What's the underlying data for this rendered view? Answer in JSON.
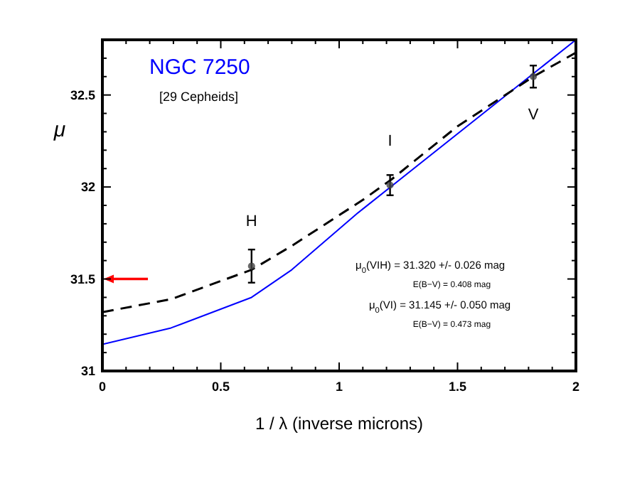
{
  "chart_data": {
    "type": "line",
    "title": "NGC 7250",
    "subtitle": "[29 Cepheids]",
    "xlabel": "1 / λ (inverse microns)",
    "ylabel": "μ",
    "xlim": [
      0,
      2
    ],
    "ylim": [
      31,
      32.8
    ],
    "xticks": [
      0,
      {
        "value": 0.1,
        "label": null
      },
      {
        "value": 0.2,
        "label": null
      },
      {
        "value": 0.3,
        "label": null
      },
      {
        "value": 0.4,
        "label": null
      },
      0.5,
      {
        "value": 0.6,
        "label": null
      },
      {
        "value": 0.7,
        "label": null
      },
      {
        "value": 0.8,
        "label": null
      },
      {
        "value": 0.9,
        "label": null
      },
      1,
      {
        "value": 1.1,
        "label": null
      },
      {
        "value": 1.2,
        "label": null
      },
      {
        "value": 1.3,
        "label": null
      },
      {
        "value": 1.4,
        "label": null
      },
      1.5,
      {
        "value": 1.6,
        "label": null
      },
      {
        "value": 1.7,
        "label": null
      },
      {
        "value": 1.8,
        "label": null
      },
      {
        "value": 1.9,
        "label": null
      },
      2
    ],
    "yticks": [
      31,
      {
        "value": 31.1,
        "label": null
      },
      {
        "value": 31.2,
        "label": null
      },
      {
        "value": 31.3,
        "label": null
      },
      {
        "value": 31.4,
        "label": null
      },
      31.5,
      {
        "value": 31.6,
        "label": null
      },
      {
        "value": 31.7,
        "label": null
      },
      {
        "value": 31.8,
        "label": null
      },
      {
        "value": 31.9,
        "label": null
      },
      32,
      {
        "value": 32.1,
        "label": null
      },
      {
        "value": 32.2,
        "label": null
      },
      {
        "value": 32.3,
        "label": null
      },
      {
        "value": 32.4,
        "label": null
      },
      32.5,
      {
        "value": 32.6,
        "label": null
      },
      {
        "value": 32.7,
        "label": null
      }
    ],
    "grid": false,
    "series": [
      {
        "color": "#0000ff",
        "line_style": "solid",
        "marker": "none",
        "x": [
          0,
          0.29,
          0.63,
          0.8,
          1.08,
          2
        ],
        "values": [
          31.145,
          31.234,
          31.4,
          31.55,
          31.86,
          32.8
        ]
      },
      {
        "color": "#000000",
        "line_style": "dashed",
        "marker": "none",
        "x": [
          0,
          0.29,
          0.63,
          0.8,
          1.1,
          1.22,
          1.5,
          1.82,
          2
        ],
        "values": [
          31.32,
          31.39,
          31.55,
          31.68,
          31.93,
          32.04,
          32.33,
          32.6,
          32.73
        ]
      },
      {
        "type": "scatter",
        "color": "#444444",
        "marker": "circle",
        "x": [
          0.63,
          1.215,
          1.82
        ],
        "values": [
          31.57,
          32.01,
          32.6
        ],
        "errors": [
          0.09,
          0.055,
          0.06
        ]
      }
    ],
    "ref_lines": [
      {
        "axis": "y",
        "value": 31.5,
        "color": "#ff0000"
      }
    ],
    "annotations": [
      "H",
      "I",
      "V",
      "μ$_{0}$(VIH) = 31.320 +/- 0.026 mag",
      "E(B−V) = 0.408 mag",
      "μ$_{0}$(VI) = 31.145 +/- 0.050 mag",
      "E(B−V) = 0.473 mag"
    ]
  }
}
